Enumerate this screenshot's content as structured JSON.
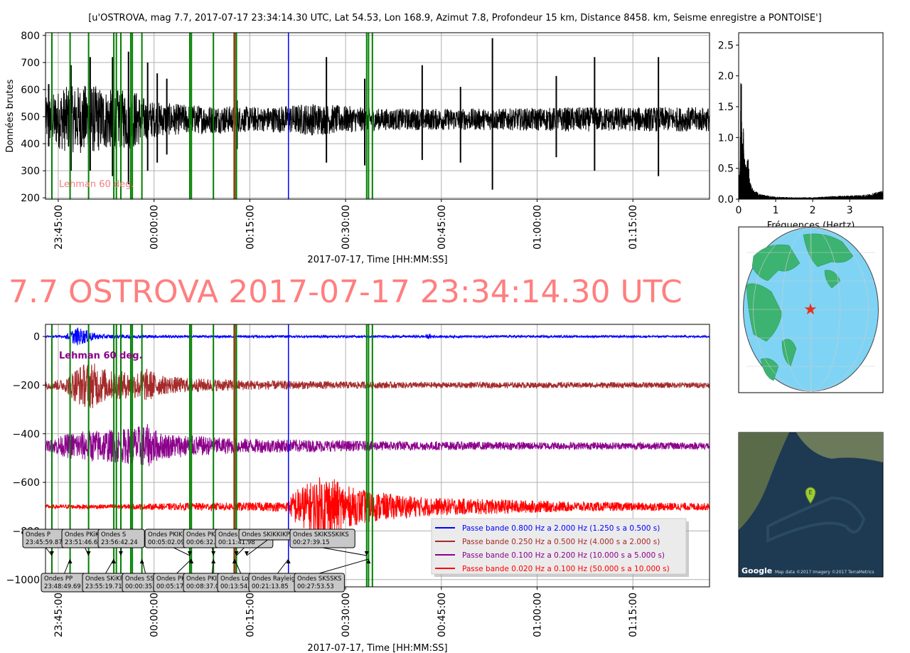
{
  "header": {
    "title": "[u'OSTROVA, mag 7.7, 2017-07-17 23:34:14.30 UTC, Lat 54.53, Lon 168.9, Azimut 7.8, Profondeur 15 km, Distance 8458. km, Seisme enregistre a PONTOISE']",
    "big_title": "7.7 OSTROVA 2017-07-17 23:34:14.30 UTC"
  },
  "colors": {
    "raw": "#000000",
    "green_phase": "#008000",
    "blue": "#0000ff",
    "brown": "#a52a2a",
    "purple": "#8b008b",
    "red": "#ff0000",
    "big_title": "#ff7f7f",
    "ocean": "#7fd4f5",
    "land": "#3cb371",
    "sat_ocean": "#1d3a52",
    "grid": "#b0b0b0"
  },
  "chart_data": [
    {
      "id": "raw_trace",
      "type": "line",
      "ylabel": "Données brutes",
      "xlabel": "2017-07-17, Time [HH:MM:SS]",
      "ylim": [
        195,
        810
      ],
      "yticks": [
        200,
        300,
        400,
        500,
        600,
        700,
        800
      ],
      "xtick_labels": [
        "23:45:00",
        "00:00:00",
        "00:15:00",
        "00:30:00",
        "00:45:00",
        "01:00:00",
        "01:15:00"
      ],
      "xtick_minutes": [
        0,
        15,
        30,
        45,
        60,
        75,
        90
      ],
      "xlim_minutes": [
        -2,
        102
      ],
      "grid": true,
      "annotation": "Lehman 60 deg.",
      "series": [
        {
          "color": "black",
          "baseline": 490,
          "envelope": [
            [
              -2,
              80
            ],
            [
              1,
              120
            ],
            [
              5,
              130
            ],
            [
              8,
              110
            ],
            [
              12,
              110
            ],
            [
              14,
              70
            ],
            [
              17,
              60
            ],
            [
              20,
              55
            ],
            [
              27,
              50
            ],
            [
              32,
              45
            ],
            [
              40,
              60
            ],
            [
              50,
              40
            ],
            [
              60,
              40
            ],
            [
              70,
              40
            ],
            [
              80,
              45
            ],
            [
              102,
              45
            ]
          ]
        }
      ],
      "spikes": [
        [
          -1.5,
          620,
          390
        ],
        [
          2,
          690,
          300
        ],
        [
          5,
          720,
          300
        ],
        [
          8.5,
          720,
          280
        ],
        [
          11,
          740,
          250
        ],
        [
          14,
          700,
          300
        ],
        [
          15.5,
          660,
          330
        ],
        [
          17,
          640,
          360
        ],
        [
          28,
          560,
          380
        ],
        [
          42,
          720,
          330
        ],
        [
          48,
          640,
          320
        ],
        [
          57,
          690,
          340
        ],
        [
          63,
          610,
          330
        ],
        [
          68,
          790,
          230
        ],
        [
          78,
          650,
          350
        ],
        [
          84,
          720,
          300
        ],
        [
          94,
          720,
          280
        ]
      ]
    },
    {
      "id": "spectrum",
      "type": "line",
      "xlabel": "Fréquences (Hertz)",
      "xlim": [
        0,
        3.9
      ],
      "ylim": [
        0,
        2.7
      ],
      "xticks": [
        0,
        1,
        2,
        3
      ],
      "yticks": [
        0.0,
        0.5,
        1.0,
        1.5,
        2.0,
        2.5
      ],
      "peaks": [
        [
          0.03,
          0.4
        ],
        [
          0.06,
          2.2
        ],
        [
          0.1,
          1.6
        ],
        [
          0.15,
          0.9
        ],
        [
          0.2,
          0.5
        ],
        [
          0.25,
          0.75
        ],
        [
          0.3,
          0.3
        ],
        [
          0.4,
          0.15
        ],
        [
          0.6,
          0.08
        ],
        [
          1.0,
          0.04
        ],
        [
          1.5,
          0.03
        ],
        [
          2.0,
          0.03
        ],
        [
          2.5,
          0.05
        ],
        [
          3.0,
          0.06
        ],
        [
          3.5,
          0.08
        ],
        [
          3.9,
          0.14
        ]
      ]
    },
    {
      "id": "bandpass",
      "type": "line",
      "xlabel": "2017-07-17, Time [HH:MM:SS]",
      "ylim": [
        -1030,
        50
      ],
      "yticks": [
        0,
        -200,
        -400,
        -600,
        -800,
        -1000
      ],
      "xtick_labels": [
        "23:45:00",
        "00:00:00",
        "00:15:00",
        "00:30:00",
        "00:45:00",
        "01:00:00",
        "01:15:00"
      ],
      "xtick_minutes": [
        0,
        15,
        30,
        45,
        60,
        75,
        90
      ],
      "xlim_minutes": [
        -2,
        102
      ],
      "grid": true,
      "annotation": "Lehman 60 deg.",
      "series": [
        {
          "name": "Passe bande 0.800 Hz a 2.000 Hz (1.250 s a 0.500 s)",
          "color": "blue",
          "offset": 0,
          "envelope": [
            [
              -2,
              4
            ],
            [
              1,
              5
            ],
            [
              2,
              25
            ],
            [
              3,
              38
            ],
            [
              4,
              30
            ],
            [
              6,
              12
            ],
            [
              8,
              8
            ],
            [
              12,
              7
            ],
            [
              20,
              5
            ],
            [
              40,
              5
            ],
            [
              57,
              5
            ],
            [
              58,
              10
            ],
            [
              59,
              5
            ],
            [
              102,
              4
            ]
          ]
        },
        {
          "name": "Passe bande 0.250 Hz a 0.500 Hz (4.000 s a 2.000 s)",
          "color": "brown",
          "offset": -200,
          "envelope": [
            [
              -2,
              15
            ],
            [
              1,
              25
            ],
            [
              3,
              80
            ],
            [
              5,
              100
            ],
            [
              8,
              60
            ],
            [
              12,
              55
            ],
            [
              14,
              70
            ],
            [
              16,
              40
            ],
            [
              20,
              30
            ],
            [
              25,
              25
            ],
            [
              30,
              20
            ],
            [
              35,
              18
            ],
            [
              45,
              15
            ],
            [
              60,
              12
            ],
            [
              80,
              12
            ],
            [
              102,
              12
            ]
          ]
        },
        {
          "name": "Passe bande 0.100 Hz a 0.200 Hz (10.000 s a 5.000 s)",
          "color": "purple",
          "offset": -450,
          "envelope": [
            [
              -2,
              20
            ],
            [
              2,
              55
            ],
            [
              5,
              65
            ],
            [
              10,
              70
            ],
            [
              14,
              90
            ],
            [
              16,
              55
            ],
            [
              20,
              45
            ],
            [
              25,
              35
            ],
            [
              30,
              30
            ],
            [
              40,
              25
            ],
            [
              50,
              20
            ],
            [
              60,
              18
            ],
            [
              80,
              15
            ],
            [
              102,
              15
            ]
          ]
        },
        {
          "name": "Passe bande 0.020 Hz a 0.100 Hz (50.000 s a 10.000 s)",
          "color": "red",
          "offset": -700,
          "envelope": [
            [
              -2,
              8
            ],
            [
              10,
              10
            ],
            [
              20,
              15
            ],
            [
              36,
              20
            ],
            [
              37,
              70
            ],
            [
              40,
              110
            ],
            [
              42,
              140
            ],
            [
              44,
              100
            ],
            [
              46,
              80
            ],
            [
              50,
              60
            ],
            [
              55,
              45
            ],
            [
              60,
              35
            ],
            [
              70,
              30
            ],
            [
              80,
              20
            ],
            [
              102,
              15
            ]
          ]
        }
      ],
      "legend_position": "lower-center-right"
    }
  ],
  "phases": {
    "green_minutes": [
      -1.0,
      1.85,
      4.75,
      8.7,
      9.1,
      9.8,
      11.35,
      11.6,
      13.1,
      20.6,
      20.85,
      24.3,
      27.9,
      48.3,
      48.6,
      49.2
    ],
    "brown_minutes": [
      27.6
    ],
    "blue_minutes": [
      36.05
    ]
  },
  "labels_top": [
    {
      "text": "Ondes P\n23:45:59.87",
      "arrow_minute": -1.0
    },
    {
      "text": "Ondes PKiKP\n23:51:46.61",
      "arrow_minute": 4.75
    },
    {
      "text": "Ondes S\n23:56:42.24",
      "arrow_minute": 9.8
    },
    {
      "text": "Ondes PKIKKIKP\n00:05:02.09",
      "arrow_minute": 20.6
    },
    {
      "text": "Ondes PKIKKIKP\n00:06:32.20",
      "arrow_minute": 24.3
    },
    {
      "text": "Ondes SKIKKIKS\n00:11:41.98",
      "arrow_minute": 27.9
    },
    {
      "text": "Ondes SKIKKIKP",
      "arrow_minute": 29.5
    },
    {
      "text": "Ondes SKIKSSKIKS\n00:27:39.15",
      "arrow_minute": 48.3
    }
  ],
  "labels_bottom": [
    {
      "text": "Ondes PP\n23:48:49.69",
      "arrow_minute": 1.85
    },
    {
      "text": "Ondes SKiKP\n23:55:19.71",
      "arrow_minute": 8.7
    },
    {
      "text": "Ondes SS\n00:00:35.21",
      "arrow_minute": 13.1
    },
    {
      "text": "Ondes PKKP\n00:05:17.01",
      "arrow_minute": 20.85
    },
    {
      "text": "Ondes PKIKKIKS\n00:08:37.08",
      "arrow_minute": 24.3
    },
    {
      "text": "Ondes Love\n00:13:54.51",
      "arrow_minute": 27.6
    },
    {
      "text": "Ondes Rayleigh\n00:21:13.85",
      "arrow_minute": 36.05
    },
    {
      "text": "Ondes SKSSKS\n00:27:53.53",
      "arrow_minute": 48.6
    }
  ],
  "globe": {
    "marker_symbol": "★"
  },
  "satmap": {
    "marker_letter": "E",
    "google_text": "Google",
    "attribution": "Map data ©2017 Imagery ©2017 TerraMetrics"
  }
}
